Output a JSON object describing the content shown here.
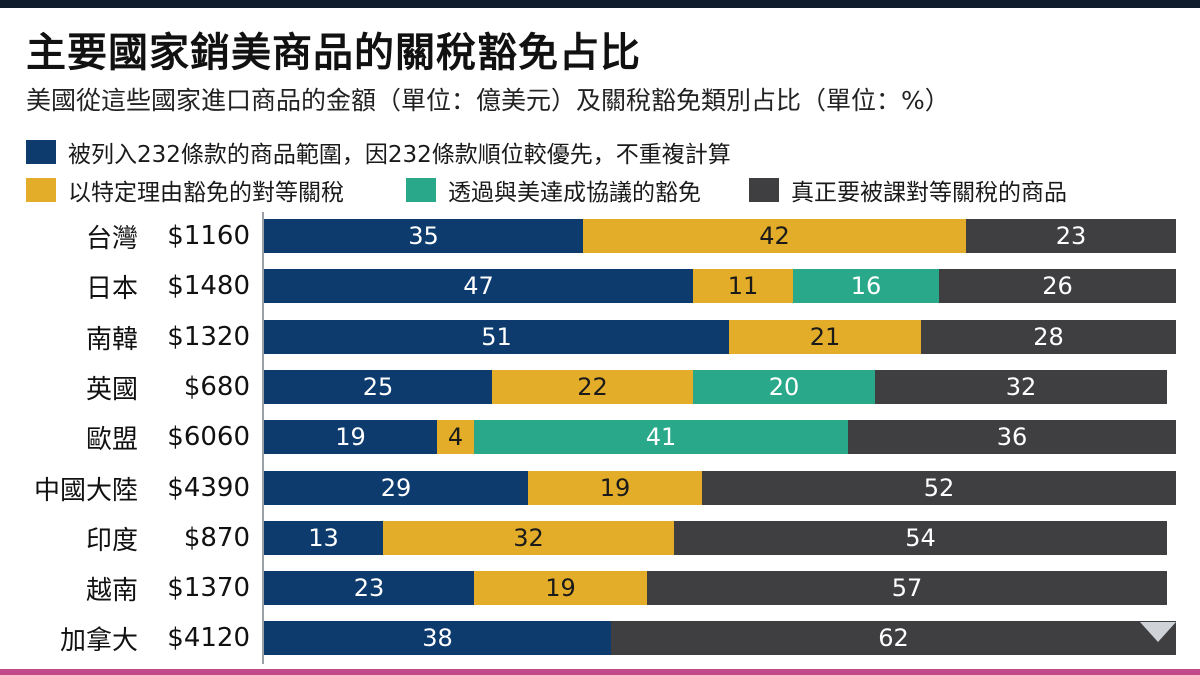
{
  "title": "主要國家銷美商品的關稅豁免占比",
  "subtitle": "美國從這些國家進口商品的金額（單位：億美元）及關稅豁免類別占比（單位：%）",
  "legend": [
    {
      "label": "被列入232條款的商品範圍，因232條款順位較優先，不重複計算",
      "color": "#0d3b6e"
    },
    {
      "label": "以特定理由豁免的對等關稅",
      "color": "#e3ad2a"
    },
    {
      "label": "透過與美達成協議的豁免",
      "color": "#2aa88a"
    },
    {
      "label": "真正要被課對等關稅的商品",
      "color": "#3f3f41"
    }
  ],
  "chart_data": {
    "type": "bar",
    "orientation": "horizontal",
    "stacked": true,
    "unit": "%",
    "categories": [
      "台灣",
      "日本",
      "南韓",
      "英國",
      "歐盟",
      "中國大陸",
      "印度",
      "越南",
      "加拿大"
    ],
    "amounts": [
      "$1160",
      "$1480",
      "$1320",
      "$680",
      "$6060",
      "$4390",
      "$870",
      "$1370",
      "$4120"
    ],
    "xlim": [
      0,
      100
    ],
    "grid": false,
    "legend_position": "top",
    "series": [
      {
        "name": "被列入232條款的商品範圍，因232條款順位較優先，不重複計算",
        "color": "#0d3b6e",
        "values": [
          35,
          47,
          51,
          25,
          19,
          29,
          13,
          23,
          38
        ]
      },
      {
        "name": "以特定理由豁免的對等關稅",
        "color": "#e3ad2a",
        "values": [
          42,
          11,
          21,
          22,
          4,
          19,
          32,
          19,
          0
        ]
      },
      {
        "name": "透過與美達成協議的豁免",
        "color": "#2aa88a",
        "values": [
          0,
          16,
          0,
          20,
          41,
          0,
          0,
          0,
          0
        ]
      },
      {
        "name": "真正要被課對等關稅的商品",
        "color": "#3f3f41",
        "values": [
          23,
          26,
          28,
          32,
          36,
          52,
          54,
          57,
          62
        ]
      }
    ]
  }
}
